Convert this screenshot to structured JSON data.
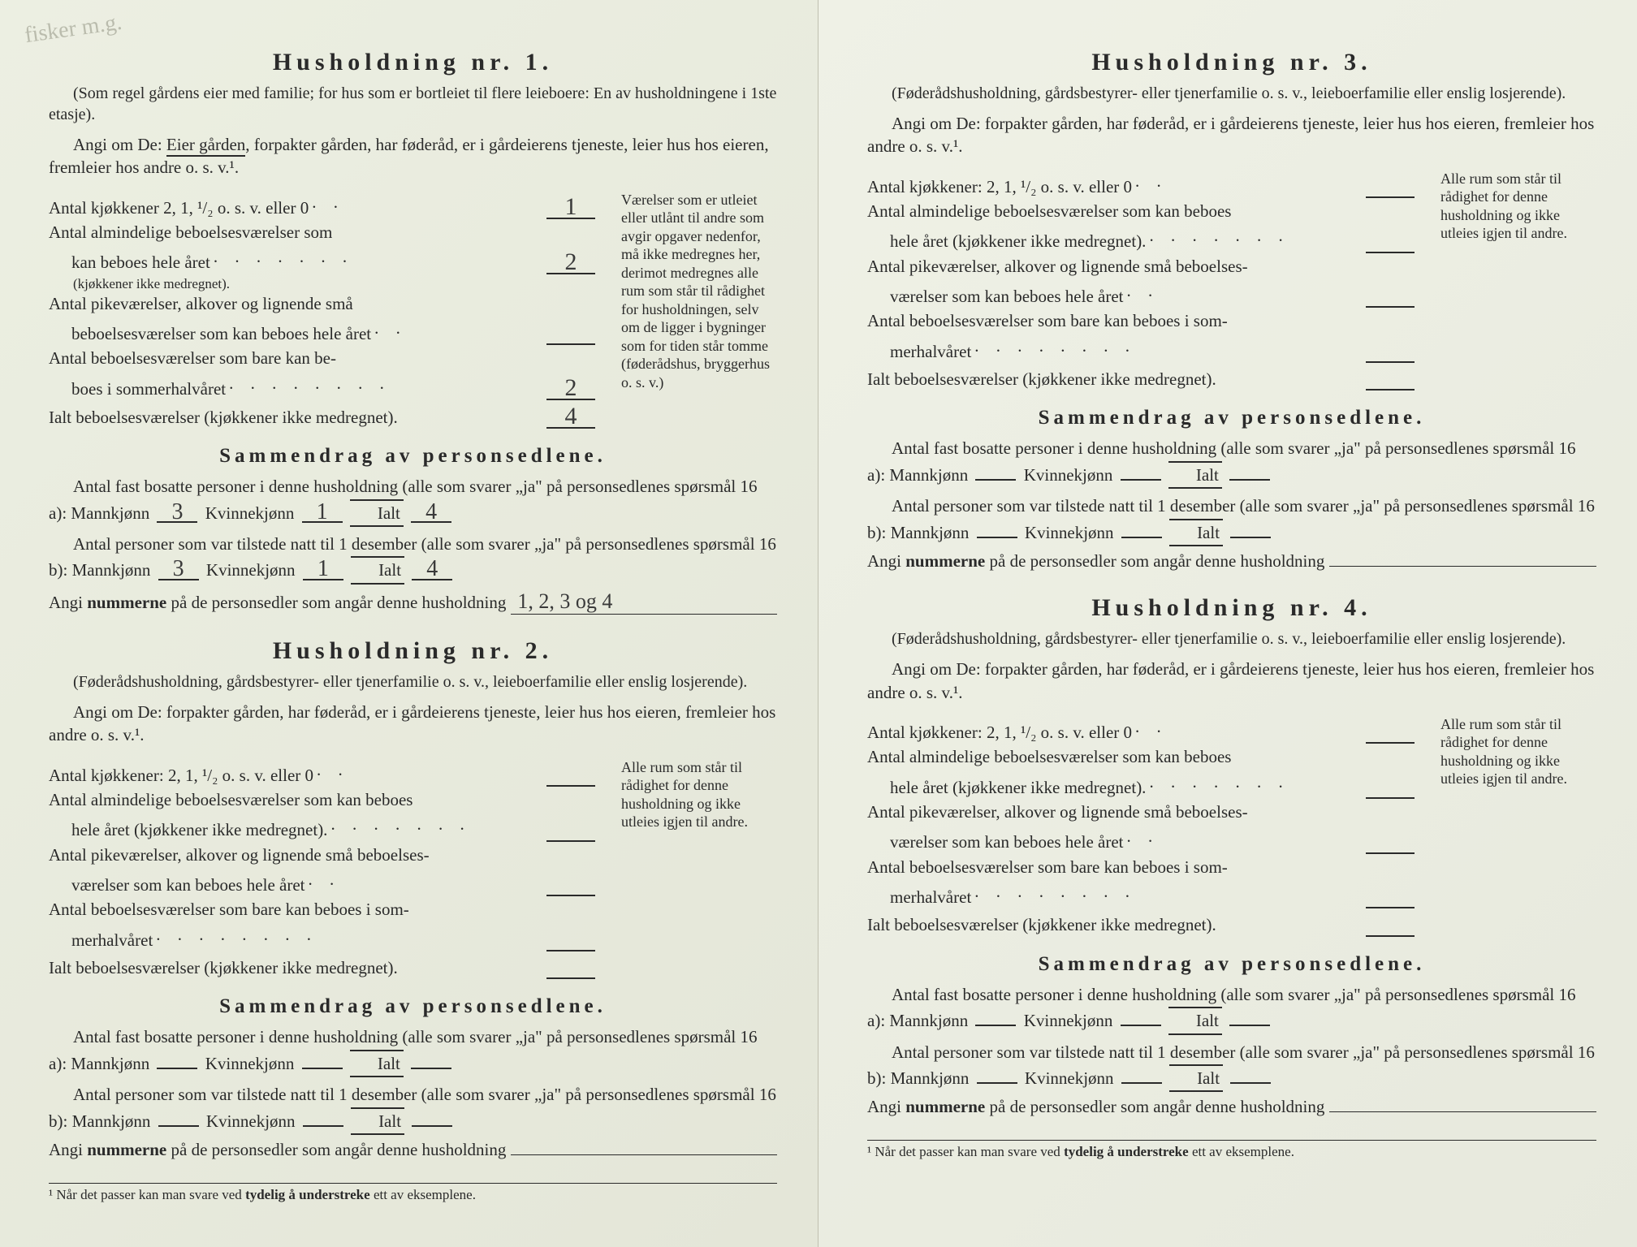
{
  "corner_note": "fisker m.g.",
  "households": [
    {
      "title": "Husholdning nr. 1.",
      "subtitle": "(Som regel gårdens eier med familie; for hus som er bortleiet til flere leieboere: En av husholdningene i 1ste etasje).",
      "instruction_pre": "Angi om De: ",
      "instruction_underlined": "Eier gården",
      "instruction_post": ", forpakter gården, har føderåd, er i gårdeierens tjeneste, leier hus hos eieren, fremleier hos andre o. s. v.¹.",
      "rooms": {
        "kjokkener_label": "Antal kjøkkener 2, 1, ¹/₂ o. s. v. eller 0",
        "kjokkener_val": "1",
        "almind_label1": "Antal almindelige beboelsesværelser som",
        "almind_label2": "kan beboes hele året",
        "almind_note": "(kjøkkener ikke medregnet).",
        "almind_val": "2",
        "pike_label1": "Antal pikeværelser, alkover og lignende små",
        "pike_label2": "beboelsesværelser som kan beboes hele året",
        "pike_val": "",
        "sommer_label1": "Antal beboelsesværelser som bare kan be-",
        "sommer_label2": "boes i sommerhalvåret",
        "sommer_val": "2",
        "ialt_label": "Ialt beboelsesværelser (kjøkkener ikke medregnet).",
        "ialt_val": "4"
      },
      "side_note": "Værelser som er utleiet eller utlånt til andre som avgir opgaver nedenfor, må ikke medregnes her, derimot medregnes alle rum som står til rådighet for husholdningen, selv om de ligger i bygninger som for tiden står tomme (føderådshus, bryggerhus o. s. v.)",
      "summary_title": "Sammendrag av personsedlene.",
      "bosatte_text": "Antal fast bosatte personer i denne husholdning (alle som svarer „ja\" på personsedlenes spørsmål 16 a): Mannkjønn",
      "bosatte_m": "3",
      "bosatte_k_label": "Kvinnekjønn",
      "bosatte_k": "1",
      "bosatte_i_label": "Ialt",
      "bosatte_i": "4",
      "tilstede_text": "Antal personer som var tilstede natt til 1 desember (alle som svarer „ja\" på personsedlenes spørsmål 16 b): Mannkjønn",
      "tilstede_m": "3",
      "tilstede_k": "1",
      "tilstede_i": "4",
      "nummer_label": "Angi nummerne på de personsedler som angår denne husholdning",
      "nummer_val": "1, 2, 3 og 4"
    },
    {
      "title": "Husholdning nr. 2.",
      "subtitle": "(Føderådshusholdning, gårdsbestyrer- eller tjenerfamilie o. s. v., leieboerfamilie eller enslig losjerende).",
      "instruction_pre": "Angi om De:   forpakter gården, har føderåd, er i gårdeierens tjeneste, leier hus hos eieren, fremleier hos andre o. s. v.¹.",
      "instruction_underlined": "",
      "instruction_post": "",
      "rooms": {
        "kjokkener_label": "Antal kjøkkener: 2, 1, ¹/₂ o. s. v. eller 0",
        "kjokkener_val": "",
        "almind_label1": "Antal almindelige beboelsesværelser som kan beboes",
        "almind_label2": "hele året (kjøkkener ikke medregnet).",
        "almind_note": "",
        "almind_val": "",
        "pike_label1": "Antal pikeværelser, alkover og lignende små beboelses-",
        "pike_label2": "værelser som kan beboes hele året",
        "pike_val": "",
        "sommer_label1": "Antal beboelsesværelser som bare kan beboes i som-",
        "sommer_label2": "merhalvåret",
        "sommer_val": "",
        "ialt_label": "Ialt beboelsesværelser (kjøkkener ikke medregnet).",
        "ialt_val": ""
      },
      "side_note": "Alle rum som står til rådighet for denne husholdning og ikke utleies igjen til andre.",
      "summary_title": "Sammendrag av personsedlene.",
      "bosatte_text": "Antal fast bosatte personer i denne husholdning (alle som svarer „ja\" på personsedlenes spørsmål 16 a): Mannkjønn",
      "bosatte_m": "",
      "bosatte_k_label": "Kvinnekjønn",
      "bosatte_k": "",
      "bosatte_i_label": "Ialt",
      "bosatte_i": "",
      "tilstede_text": "Antal personer som var tilstede natt til 1 desember (alle som svarer „ja\" på personsedlenes spørsmål 16 b): Mannkjønn",
      "tilstede_m": "",
      "tilstede_k": "",
      "tilstede_i": "",
      "nummer_label": "Angi nummerne på de personsedler som angår denne husholdning",
      "nummer_val": ""
    },
    {
      "title": "Husholdning nr. 3.",
      "subtitle": "(Føderådshusholdning, gårdsbestyrer- eller tjenerfamilie o. s. v., leieboerfamilie eller enslig losjerende).",
      "instruction_pre": "Angi om De:   forpakter gården, har føderåd, er i gårdeierens tjeneste, leier hus hos eieren, fremleier hos andre o. s. v.¹.",
      "instruction_underlined": "",
      "instruction_post": "",
      "rooms": {
        "kjokkener_label": "Antal kjøkkener: 2, 1, ¹/₂ o. s. v. eller 0",
        "kjokkener_val": "",
        "almind_label1": "Antal almindelige beboelsesværelser som kan beboes",
        "almind_label2": "hele året (kjøkkener ikke medregnet).",
        "almind_note": "",
        "almind_val": "",
        "pike_label1": "Antal pikeværelser, alkover og lignende små beboelses-",
        "pike_label2": "værelser som kan beboes hele året",
        "pike_val": "",
        "sommer_label1": "Antal beboelsesværelser som bare kan beboes i som-",
        "sommer_label2": "merhalvåret",
        "sommer_val": "",
        "ialt_label": "Ialt beboelsesværelser (kjøkkener ikke medregnet).",
        "ialt_val": ""
      },
      "side_note": "Alle rum som står til rådighet for denne husholdning og ikke utleies igjen til andre.",
      "summary_title": "Sammendrag av personsedlene.",
      "bosatte_text": "Antal fast bosatte personer i denne husholdning (alle som svarer „ja\" på personsedlenes spørsmål 16 a): Mannkjønn",
      "bosatte_m": "",
      "bosatte_k_label": "Kvinnekjønn",
      "bosatte_k": "",
      "bosatte_i_label": "Ialt",
      "bosatte_i": "",
      "tilstede_text": "Antal personer som var tilstede natt til 1 desember (alle som svarer „ja\" på personsedlenes spørsmål 16 b): Mannkjønn",
      "tilstede_m": "",
      "tilstede_k": "",
      "tilstede_i": "",
      "nummer_label": "Angi nummerne på de personsedler som angår denne husholdning",
      "nummer_val": ""
    },
    {
      "title": "Husholdning nr. 4.",
      "subtitle": "(Føderådshusholdning, gårdsbestyrer- eller tjenerfamilie o. s. v., leieboerfamilie eller enslig losjerende).",
      "instruction_pre": "Angi om De:   forpakter gården, har føderåd, er i gårdeierens tjeneste, leier hus hos eieren, fremleier hos andre o. s. v.¹.",
      "instruction_underlined": "",
      "instruction_post": "",
      "rooms": {
        "kjokkener_label": "Antal kjøkkener: 2, 1, ¹/₂ o. s. v. eller 0",
        "kjokkener_val": "",
        "almind_label1": "Antal almindelige beboelsesværelser som kan beboes",
        "almind_label2": "hele året (kjøkkener ikke medregnet).",
        "almind_note": "",
        "almind_val": "",
        "pike_label1": "Antal pikeværelser, alkover og lignende små beboelses-",
        "pike_label2": "værelser som kan beboes hele året",
        "pike_val": "",
        "sommer_label1": "Antal beboelsesværelser som bare kan beboes i som-",
        "sommer_label2": "merhalvåret",
        "sommer_val": "",
        "ialt_label": "Ialt beboelsesværelser (kjøkkener ikke medregnet).",
        "ialt_val": ""
      },
      "side_note": "Alle rum som står til rådighet for denne husholdning og ikke utleies igjen til andre.",
      "summary_title": "Sammendrag av personsedlene.",
      "bosatte_text": "Antal fast bosatte personer i denne husholdning (alle som svarer „ja\" på personsedlenes spørsmål 16 a): Mannkjønn",
      "bosatte_m": "",
      "bosatte_k_label": "Kvinnekjønn",
      "bosatte_k": "",
      "bosatte_i_label": "Ialt",
      "bosatte_i": "",
      "tilstede_text": "Antal personer som var tilstede natt til 1 desember (alle som svarer „ja\" på personsedlenes spørsmål 16 b): Mannkjønn",
      "tilstede_m": "",
      "tilstede_k": "",
      "tilstede_i": "",
      "nummer_label": "Angi nummerne på de personsedler som angår denne husholdning",
      "nummer_val": ""
    }
  ],
  "footnote": "¹ Når det passer kan man svare ved tydelig å understreke ett av eksemplene.",
  "footnote_bold": "tydelig å understreke",
  "colors": {
    "paper": "#ecefe2",
    "text": "#2a2a2a",
    "handwriting": "#3a3a3a"
  }
}
